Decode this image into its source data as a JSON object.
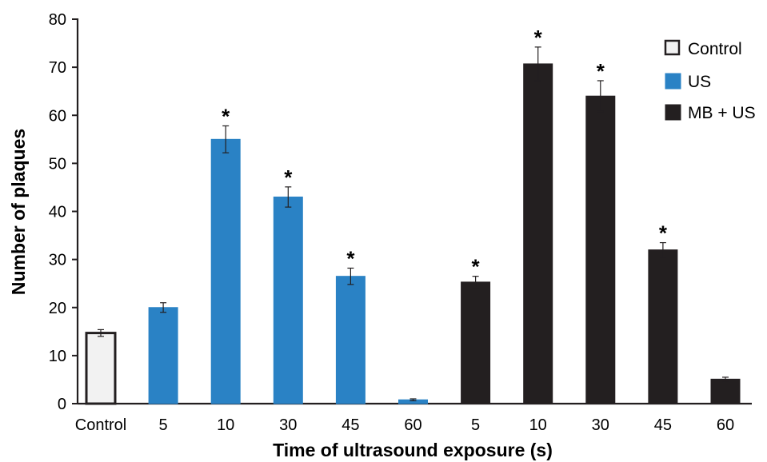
{
  "chart_data": {
    "type": "bar",
    "xlabel": "Time of ultrasound exposure (s)",
    "ylabel": "Number of plaques",
    "ylim": [
      0,
      80
    ],
    "yticks": [
      0,
      10,
      20,
      30,
      40,
      50,
      60,
      70,
      80
    ],
    "grid": false,
    "legend_position": "top-right",
    "categories": [
      "Control",
      "5",
      "10",
      "30",
      "45",
      "60",
      "5",
      "10",
      "30",
      "45",
      "60"
    ],
    "series": [
      {
        "name": "Control",
        "color": "#f2f2f2",
        "stroke": "#231f20",
        "indices": [
          0
        ]
      },
      {
        "name": "US",
        "color": "#2a82c5",
        "stroke": "#2a82c5",
        "indices": [
          1,
          2,
          3,
          4,
          5
        ]
      },
      {
        "name": "MB + US",
        "color": "#231f20",
        "stroke": "#231f20",
        "indices": [
          6,
          7,
          8,
          9,
          10
        ]
      }
    ],
    "values": [
      14.7,
      20.0,
      55.0,
      43.0,
      26.5,
      0.8,
      25.3,
      70.7,
      64.0,
      32.0,
      5.1
    ],
    "errors": [
      0.7,
      1.0,
      2.8,
      2.1,
      1.7,
      0.2,
      1.2,
      3.5,
      3.2,
      1.5,
      0.4
    ],
    "significant": [
      false,
      false,
      true,
      true,
      true,
      false,
      true,
      true,
      true,
      true,
      false
    ],
    "significance_marker": "*"
  }
}
